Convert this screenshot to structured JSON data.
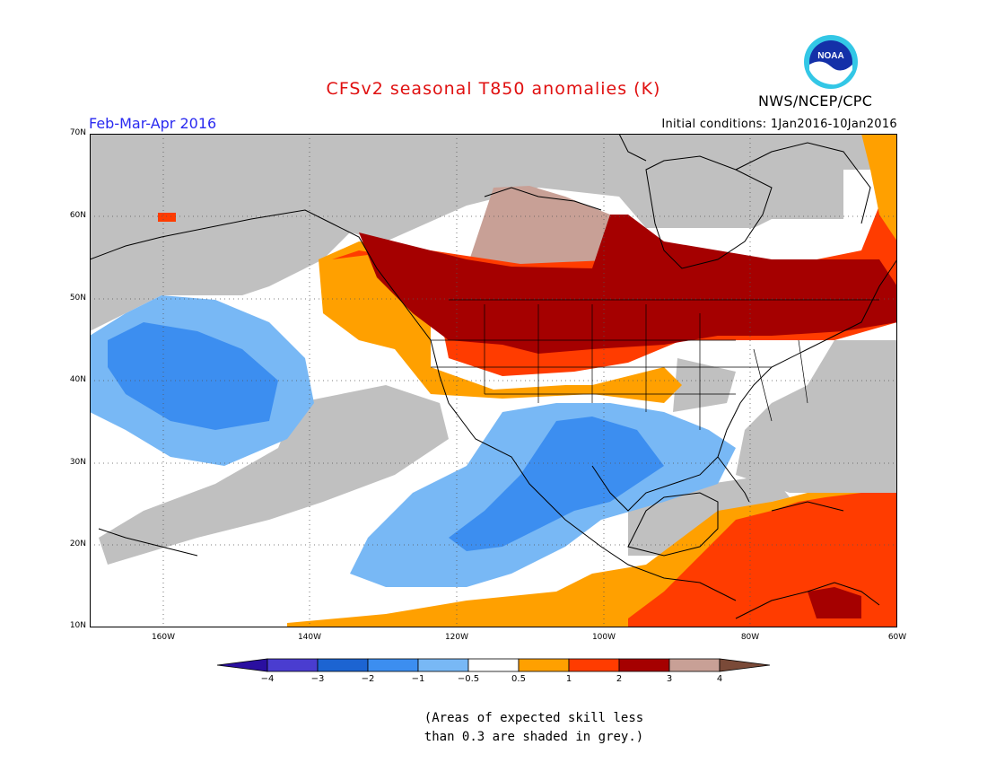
{
  "title": "CFSv2 seasonal T850 anomalies (K)",
  "period": "Feb-Mar-Apr 2016",
  "initial_conditions": "Initial conditions: 1Jan2016-10Jan2016",
  "agency": "NWS/NCEP/CPC",
  "logo_text": "NOAA",
  "lat_labels": [
    "70N",
    "60N",
    "50N",
    "40N",
    "30N",
    "20N",
    "10N"
  ],
  "lon_labels": [
    "160W",
    "140W",
    "120W",
    "100W",
    "80W",
    "60W"
  ],
  "colorbar": {
    "labels": [
      "−4",
      "−3",
      "−2",
      "−1",
      "−0.5",
      "0.5",
      "1",
      "2",
      "3",
      "4"
    ],
    "colors": [
      "#2a0fa0",
      "#4a3dd0",
      "#1c64d2",
      "#3c8ef0",
      "#78b8f5",
      "#ffffff",
      "#ffa000",
      "#ff3c00",
      "#a50000",
      "#c8a096",
      "#7a4a38"
    ]
  },
  "skill_note_line1": "(Areas of expected skill less",
  "skill_note_line2": "than 0.3 are shaded in grey.)",
  "colors": {
    "grey_low_skill": "#c0c0c0",
    "title_red": "#e01010",
    "period_blue": "#2a2af0"
  }
}
